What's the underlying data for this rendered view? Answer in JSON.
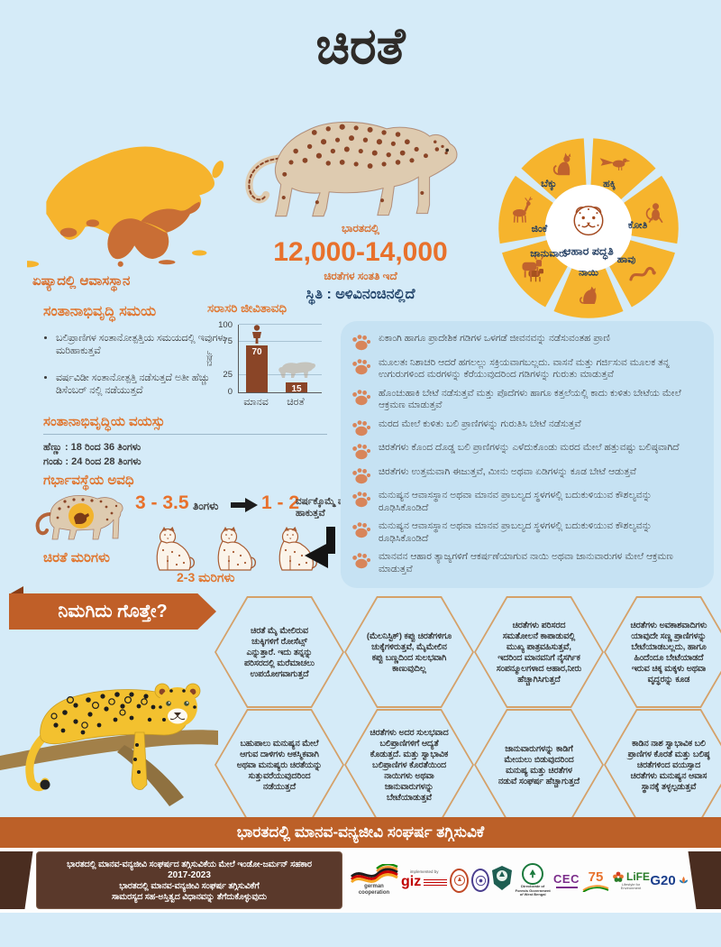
{
  "colors": {
    "background": "#d5ebf8",
    "panel_blue": "#c6e2f3",
    "accent_orange": "#e0762f",
    "number_orange": "#e8712c",
    "leopard_brown": "#8a4527",
    "wheel_yellow": "#f6b42d",
    "map_yellow": "#f6b42d",
    "habitat_orange": "#c96e35",
    "ribbon_orange": "#c05f28",
    "banner_orange": "#bc6028",
    "footer_brown": "#5a392b",
    "hex_border": "#d5a169",
    "navy_text": "#23456b"
  },
  "header": {
    "title": "ಚಿರತೆ"
  },
  "top": {
    "habitat_label": "ಏಷ್ಯಾದಲ್ಲಿ ಆವಾಸಸ್ಥಾನ",
    "population": {
      "line1": "ಭಾರತದಲ್ಲಿ",
      "number": "12,000-14,000",
      "line2": "ಚಿರತೆಗಳ ಸಂತತಿ ಇದೆ",
      "status": "ಸ್ಥಿತಿ : ಅಳಿವಿನಂಚಿನಲ್ಲಿದೆ"
    },
    "food_wheel": {
      "center_label": "ಆಹಾರ ಪದ್ಧತಿ",
      "items": [
        "ಹಕ್ಕಿ",
        "ಕೋತಿ",
        "ಹಾವು",
        "ನಾಯಿ",
        "ಜಾನುವಾರು",
        "ಜಿಂಕೆ",
        "ಬೆಕ್ಕು"
      ]
    }
  },
  "breeding_time": {
    "heading": "ಸಂತಾನಾಭಿವೃದ್ಧಿ ಸಮಯ",
    "bullets": [
      "ಬಲಿಪ್ರಾಣಿಗಳ ಸಂತಾನೋತ್ಪತ್ತಿಯ ಸಮಯದಲ್ಲಿ ಇವುಗಳು ಮರಿಹಾಕುತ್ತವೆ",
      "ವರ್ಷವಿಡೀ ಸಂತಾನೋತ್ಪತ್ತಿ ನಡೆಸುತ್ತದೆ ಅತೀ ಹೆಚ್ಚು ಡಿಸೆಂಬರ್ ನಲ್ಲಿ ನಡೆಯುತ್ತದೆ"
    ]
  },
  "chart_data": {
    "type": "bar",
    "title": "ಸರಾಸರಿ ಜೀವಿತಾವಧಿ",
    "categories": [
      "ಮಾನವ",
      "ಚಿರತೆ"
    ],
    "values": [
      70,
      15
    ],
    "ylabel": "ವರ್ಷ",
    "yticks": [
      0,
      25,
      75,
      100
    ],
    "ylim": [
      0,
      100
    ],
    "bar_color": "#8a4527",
    "grid": true
  },
  "breeding_age": {
    "heading": "ಸಂತಾನಾಭಿವೃದ್ಧಿಯ ವಯಸ್ಸು",
    "female": "ಹೆಣ್ಣು : 18 ರಿಂದ 36 ತಿಂಗಳು",
    "male": "ಗಂಡು : 24 ರಿಂದ 28 ತಿಂಗಳು"
  },
  "gestation": {
    "heading": "ಗರ್ಭಾವಸ್ಥೆಯ ಅವಧಿ",
    "value": "3 - 3.5",
    "unit": "ತಿಂಗಳು",
    "freq_value": "1 - 2",
    "freq_text": "ವರ್ಷಕ್ಕೊಮ್ಮೆ ಮರಿ ಹಾಕುತ್ತವೆ"
  },
  "cubs": {
    "heading": "ಚಿರತೆ ಮರಿಗಳು",
    "count": "2-3 ಮರಿಗಳು"
  },
  "facts": {
    "bullets": [
      "ಏಕಾಂಗಿ ಹಾಗೂ ಪ್ರಾದೇಶಿಕ ಗಡಿಗಳ ಒಳಗಡೆ ಜೀವನವನ್ನು ನಡೆಸುವಂತಹ ಪ್ರಾಣಿ",
      "ಮೂಲತಃ ನಿಶಾಚರಿ ಆದರೆ ಹಗಲಲ್ಲು ಸಕ್ರಿಯವಾಗಬಲ್ಲದು. ವಾಸನೆ ಮತ್ತು ಗರ್ಜಿಸುವ ಮೂಲಕ ತನ್ನ ಉಗುರುಗಳಿಂದ ಮರಗಳನ್ನು ಕೆರೆಯುವುದರಿಂದ ಗಡಿಗಳನ್ನು ಗುರುತು ಮಾಡುತ್ತವೆ",
      "ಹೊಂಚುಹಾಕಿ ಬೇಟೆ ನಡೆಸುತ್ತವೆ ಮತ್ತು ಪೊದೆಗಳು ಹಾಗೂ ಕತ್ತಲೆಯಲ್ಲಿ ಕಾದು ಕುಳಿತು ಬೇಟೆಯ ಮೇಲೆ ಆಕ್ರಮಣ ಮಾಡುತ್ತವೆ",
      "ಮರದ ಮೇಲೆ ಕುಳಿತು ಬಲಿ ಪ್ರಾಣಿಗಳನ್ನು ಗುರುತಿಸಿ ಬೇಟೆ ನಡೆಸುತ್ತವೆ",
      "ಚಿರತೆಗಳು ಕೊಂದ ದೊಡ್ಡ ಬಲಿ ಪ್ರಾಣಿಗಳನ್ನು ಎಳೆದುಕೊಂಡು ಮರದ ಮೇಲೆ ಹತ್ತುವಷ್ಟು ಬಲಿಷ್ಠವಾಗಿದೆ",
      "ಚಿರತೆಗಳು ಉತ್ತಮವಾಗಿ ಈಜುತ್ತವೆ, ಮೀನು ಅಥವಾ ಏಡಿಗಳನ್ನು ಕೂಡ ಬೇಟೆ ಆಡುತ್ತವೆ",
      "ಮನುಷ್ಯನ ಆವಾಸಸ್ಥಾನ ಅಥವಾ ಮಾನವ ಪ್ರಾಬಲ್ಯದ ಸ್ಥಳಗಳಲ್ಲಿ ಬದುಕುಳಿಯುವ ಕೌಶಲ್ಯವನ್ನು ರೂಢಿಸಿಕೊಂಡಿದೆ",
      "ಮನುಷ್ಯನ ಆವಾಸಸ್ಥಾನ ಅಥವಾ ಮಾನವ ಪ್ರಾಬಲ್ಯದ ಸ್ಥಳಗಳಲ್ಲಿ ಬದುಕುಳಿಯುವ ಕೌಶಲ್ಯವನ್ನು ರೂಢಿಸಿಕೊಂಡಿದೆ",
      "ಮಾನವನ ಆಹಾರ ತ್ಯಾಜ್ಯಗಳಿಗೆ ಆಕರ್ಷಣೆಯಾಗುವ ನಾಯಿ ಅಥವಾ ಜಾನುವಾರುಗಳ ಮೇಲೆ ಆಕ್ರಮಣ ಮಾಡುತ್ತವೆ"
    ]
  },
  "did_you_know": {
    "heading": "ನಿಮಗಿದು ಗೊತ್ತೇ?",
    "hexagons": [
      "ಚಿರತೆ ಮೈ ಮೇಲಿರುವ ಚುಕ್ಕಿಗಳಿಗೆ ರೋಸೆಟ್ಸ್ ಎನ್ನುತ್ತಾರೆ. ಇದು ತನ್ನನ್ನು ಪರಿಸರದಲ್ಲಿ ಮರೆಮಾಚಲು ಉಪಯೋಗವಾಗುತ್ತದೆ",
      "(ಮೆಲನಿಸ್ಟಿಕ್) ಕಪ್ಪು ಚಿರತೆಗಳಿಗೂ ಚುಕ್ಕೆಗಳಿರುತ್ತವೆ, ಮೈಮೇಲಿನ ಕಪ್ಪು ಬಣ್ಣದಿಂದ ಸುಲಭವಾಗಿ ಕಾಣುವುದಿಲ್ಲ",
      "ಚಿರತೆಗಳು ಪರಿಸರದ ಸಮತೋಲನೆ ಕಾಪಾಡುವಲ್ಲಿ ಮುಖ್ಯ ಪಾತ್ರವಹಿಸುತ್ತವೆ, ಇದರಿಂದ ಮಾನವನಿಗೆ ನೈಸರ್ಗಿಕ ಸಂಪನ್ಮೂಲಗಳಾದ ಆಹಾರ,ನೀರು ಹೆಚ್ಚಾಗಿಸಿಗುತ್ತದೆ",
      "ಚಿರತೆಗಳು ಅವಕಾಶವಾದಿಗಳು ಯಾವುದೇ ಸಣ್ಣ ಪ್ರಾಣಿಗಳನ್ನು ಬೇಟೆಯಾಡಬಲ್ಲದು, ಹಾಗೂ ಹಿಂದೆಂದೂ ಬೇಟೆಯಾಡದೆ ಇರುವ ಚಿಕ್ಕ ಮಕ್ಕಳು ಅಥವಾ ವೃದ್ಧರನ್ನು ಕೂಡ",
      "ಬಹುಪಾಲು ಮನುಷ್ಯನ ಮೇಲೆ ಆಗುವ ದಾಳಿಗಳು ಆಕಸ್ಮಿಕವಾಗಿ ಅಥವಾ ಮನುಷ್ಯರು ಚಿರತೆಯನ್ನು ಸುತ್ತುವರೆಯುವುದರಿಂದ ನಡೆಯುತ್ತದೆ",
      "ಚಿರತೆಗಳು ಅದರ ಸುಲಭವಾದ ಬಲಿಪ್ರಾಣಿಗಳಿಗೆ ಆದ್ಯತೆ ಕೊಡುತ್ತದೆ. ಮತ್ತು ಸ್ವಾಭಾವಿಕ ಬಲಿಪ್ರಾಣಿಗಳ ಕೊರತೆಯಿಂದ ನಾಯಿಗಳು ಅಥವಾ ಜಾನುವಾರುಗಳನ್ನು ಬೇಟೆಯಾಡುತ್ತವೆ",
      "ಜಾನುವಾರುಗಳನ್ನು ಕಾಡಿಗೆ ಮೇಯಲು ಬಿಡುವುದರಿಂದ ಮನುಷ್ಯ ಮತ್ತು ಚಿರತೆಗಳ ನಡುವೆ ಸಂಘರ್ಷ ಹೆಚ್ಚಾಗುತ್ತದೆ",
      "ಕಾಡಿನ ನಾಶ ಸ್ವಾಭಾವಿಕ ಬಲಿ ಪ್ರಾಣಿಗಳ ಕೊರತೆ ಮತ್ತು ಬಲಿಷ್ಠ ಚಿರತೆಗಳಿಂದ ವಯಸ್ಸಾದ ಚಿರತೆಗಳು ಮನುಷ್ಯನ ಆವಾಸ ಸ್ಥಾನಕ್ಕೆ ತಳ್ಳಲ್ಪಡುತ್ತವೆ"
    ]
  },
  "banner": {
    "text": "ಭಾರತದಲ್ಲಿ ಮಾನವ-ವನ್ಯಜೀವಿ ಸಂಘರ್ಷ ತಗ್ಗಿಸುವಿಕೆ"
  },
  "footer": {
    "box": {
      "line1": "ಭಾರತದಲ್ಲಿ ಮಾನವ-ವನ್ಯಜೀವಿ ಸಂಘರ್ಷದ ತಗ್ಗಿಸುವಿಕೆಯ ಮೇಲೆ ಇಂಡೋ-ಜರ್ಮನ್ ಸಹಕಾರ",
      "line2": "2017-2023",
      "line3": "ಭಾರತದಲ್ಲಿ ಮಾನವ-ವನ್ಯಜೀವಿ ಸಂಘರ್ಷ ತಗ್ಗಿಸುವಿಕೆಗೆ",
      "line4": "ಸಾಮರಸ್ಯದ ಸಹ-ಅಸ್ತಿತ್ವದ ವಿಧಾನವನ್ನು ತೆಗೆದುಕೊಳ್ಳುವುದು"
    },
    "logos": {
      "german": "german cooperation",
      "implemented_by": "implemented by",
      "giz": "giz",
      "wb": "Directorate of Forests Government of West Bengal",
      "cec": "CEC",
      "azadi": "75",
      "life": "LiFE",
      "life_sub": "Lifestyle for Environment",
      "g20": "G20"
    }
  }
}
